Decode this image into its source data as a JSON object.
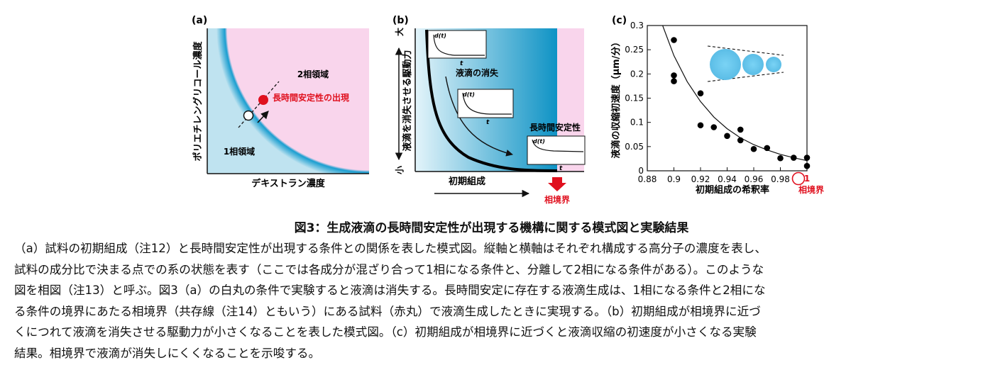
{
  "panel_a": {
    "label": "(a)",
    "ylabel": "ポリエチレングリコール濃度",
    "xlabel": "デキストラン濃度",
    "region_two_phase": "2相領域",
    "region_one_phase": "1相領域",
    "red_point_label": "長時間安定性の出現",
    "colors": {
      "two_phase": "#f9d5ec",
      "one_phase": "#bfe3f0",
      "boundary": "#1a9ed0",
      "red_point": "#e0101e"
    }
  },
  "panel_b": {
    "label": "(b)",
    "ylabel": "液滴を消失させる駆動力",
    "y_top": "大",
    "y_bottom": "小",
    "xlabel": "初期組成",
    "text_disappear": "液滴の消失",
    "text_stable": "長時間安定性",
    "inset_ylabel": "d(t)",
    "inset_xlabel": "t",
    "arrow_label": "相境界",
    "colors": {
      "gradient_start": "#e3f4fa",
      "gradient_end": "#0f93c5",
      "pink": "#f9d5ec",
      "red": "#e0101e"
    }
  },
  "panel_c": {
    "label": "(c)",
    "xticks": [
      "0.88",
      "0.9",
      "0.92",
      "0.94",
      "0.96",
      "0.98",
      "1"
    ],
    "yticks": [
      "0",
      "0.05",
      "0.1",
      "0.15",
      "0.2",
      "0.25",
      "0.3"
    ],
    "ylabel": "液滴の収縮初速度（μm/分）",
    "xlabel": "初期組成の希釈率",
    "boundary_label": "相境界",
    "colors": {
      "circles": "#6cc8ee",
      "red": "#e0101e"
    }
  },
  "chart_data": {
    "type": "scatter",
    "title": "",
    "xlabel": "初期組成の希釈率",
    "ylabel": "液滴の収縮初速度（μm/分）",
    "xlim": [
      0.88,
      1.0
    ],
    "ylim": [
      0,
      0.3
    ],
    "points": [
      {
        "x": 0.9,
        "y": 0.27
      },
      {
        "x": 0.9,
        "y": 0.197
      },
      {
        "x": 0.9,
        "y": 0.185
      },
      {
        "x": 0.92,
        "y": 0.16
      },
      {
        "x": 0.92,
        "y": 0.094
      },
      {
        "x": 0.93,
        "y": 0.09
      },
      {
        "x": 0.94,
        "y": 0.072
      },
      {
        "x": 0.95,
        "y": 0.085
      },
      {
        "x": 0.95,
        "y": 0.063
      },
      {
        "x": 0.96,
        "y": 0.045
      },
      {
        "x": 0.97,
        "y": 0.047
      },
      {
        "x": 0.98,
        "y": 0.026
      },
      {
        "x": 0.99,
        "y": 0.027
      },
      {
        "x": 1.0,
        "y": 0.027
      },
      {
        "x": 1.0,
        "y": 0.01
      }
    ],
    "fit_curve": [
      {
        "x": 0.8915,
        "y": 0.3
      },
      {
        "x": 0.9,
        "y": 0.238
      },
      {
        "x": 0.91,
        "y": 0.184
      },
      {
        "x": 0.92,
        "y": 0.143
      },
      {
        "x": 0.93,
        "y": 0.111
      },
      {
        "x": 0.94,
        "y": 0.087
      },
      {
        "x": 0.95,
        "y": 0.068
      },
      {
        "x": 0.96,
        "y": 0.054
      },
      {
        "x": 0.97,
        "y": 0.043
      },
      {
        "x": 0.98,
        "y": 0.034
      },
      {
        "x": 0.99,
        "y": 0.027
      },
      {
        "x": 1.0,
        "y": 0.021
      }
    ]
  },
  "figure_title": "図3：生成液滴の長時間安定性が出現する機構に関する模式図と実験結果",
  "caption_lines": [
    "（a）試料の初期組成（注12）と長時間安定性が出現する条件との関係を表した模式図。縦軸と横軸はそれぞれ構成する高分子の濃度を表し、",
    "試料の成分比で決まる点での系の状態を表す（ここでは各成分が混ざり合って1相になる条件と、分離して2相になる条件がある）。このような",
    "図を相図（注13）と呼ぶ。図3（a）の白丸の条件で実験すると液滴は消失する。長時間安定に存在する液滴生成は、1相になる条件と2相にな",
    "る条件の境界にあたる相境界（共存線（注14）ともいう）にある試料（赤丸）で液滴生成したときに実現する。（b）初期組成が相境界に近づ",
    "くにつれて液滴を消失させる駆動力が小さくなることを表した模式図。（c）初期組成が相境界に近づくと液滴収縮の初速度が小さくなる実験",
    "結果。相境界で液滴が消失しにくくなることを示唆する。"
  ]
}
